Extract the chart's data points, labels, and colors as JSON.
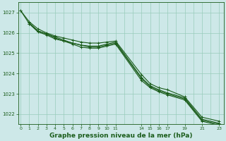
{
  "background_color": "#cde8e8",
  "plot_bg_color": "#cde8e8",
  "grid_color": "#99ccbb",
  "line_color": "#1a5c1a",
  "xlabel": "Graphe pression niveau de la mer (hPa)",
  "xlabel_fontsize": 6.5,
  "ylim": [
    1021.5,
    1027.5
  ],
  "xlim": [
    -0.3,
    23.5
  ],
  "xticks": [
    0,
    1,
    2,
    3,
    4,
    5,
    6,
    7,
    8,
    9,
    10,
    11,
    14,
    15,
    16,
    17,
    19,
    21,
    23
  ],
  "yticks": [
    1022,
    1023,
    1024,
    1025,
    1026,
    1027
  ],
  "line1_x": [
    0,
    1,
    2,
    3,
    4,
    5,
    6,
    7,
    8,
    9,
    10,
    11,
    14,
    15,
    16,
    17,
    19,
    21,
    23
  ],
  "line1_y": [
    1027.1,
    1026.55,
    1026.2,
    1026.0,
    1025.85,
    1025.75,
    1025.65,
    1025.55,
    1025.5,
    1025.5,
    1025.55,
    1025.6,
    1023.95,
    1023.5,
    1023.3,
    1023.2,
    1022.85,
    1021.85,
    1021.65
  ],
  "line2_x": [
    0,
    1,
    2,
    3,
    4,
    5,
    6,
    7,
    8,
    9,
    10,
    11,
    14,
    15,
    16,
    17,
    19,
    21,
    23
  ],
  "line2_y": [
    1027.1,
    1026.45,
    1026.1,
    1025.95,
    1025.75,
    1025.6,
    1025.5,
    1025.4,
    1025.35,
    1025.35,
    1025.45,
    1025.55,
    1023.8,
    1023.4,
    1023.2,
    1023.05,
    1022.8,
    1021.75,
    1021.55
  ],
  "line3_x": [
    1,
    2,
    3,
    4,
    5,
    6,
    7,
    8,
    9,
    10,
    11,
    14,
    15,
    16,
    17,
    19,
    21,
    23
  ],
  "line3_y": [
    1026.5,
    1026.1,
    1025.95,
    1025.8,
    1025.65,
    1025.5,
    1025.4,
    1025.3,
    1025.3,
    1025.4,
    1025.5,
    1023.75,
    1023.35,
    1023.15,
    1023.0,
    1022.75,
    1021.7,
    1021.5
  ],
  "line4_x": [
    1,
    2,
    3,
    4,
    5,
    6,
    7,
    8,
    9,
    10,
    11,
    14,
    15,
    16,
    17,
    19,
    21,
    23
  ],
  "line4_y": [
    1026.45,
    1026.05,
    1025.9,
    1025.7,
    1025.6,
    1025.45,
    1025.3,
    1025.25,
    1025.25,
    1025.35,
    1025.45,
    1023.65,
    1023.3,
    1023.1,
    1022.95,
    1022.7,
    1021.65,
    1021.45
  ]
}
